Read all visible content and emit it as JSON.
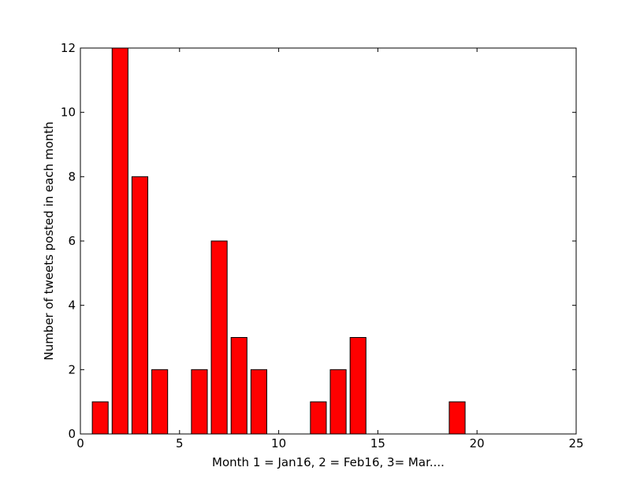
{
  "chart_data": {
    "type": "bar",
    "title": "",
    "xlabel": "Month 1 = Jan16, 2 = Feb16, 3= Mar....",
    "ylabel": "Number of tweets posted in each month",
    "xlim": [
      0,
      25
    ],
    "ylim": [
      0,
      12
    ],
    "xticks": [
      0,
      5,
      10,
      15,
      20,
      25
    ],
    "yticks": [
      0,
      2,
      4,
      6,
      8,
      10,
      12
    ],
    "grid": false,
    "legend": "none",
    "bar_width": 0.8,
    "bar_color": "#ff0000",
    "bar_edge_color": "#000000",
    "x": [
      1,
      2,
      3,
      4,
      5,
      6,
      7,
      8,
      9,
      10,
      11,
      12,
      13,
      14,
      15,
      16,
      17,
      18,
      19,
      20,
      21
    ],
    "values": [
      1,
      12,
      8,
      2,
      0,
      2,
      6,
      3,
      2,
      0,
      0,
      1,
      2,
      3,
      0,
      0,
      0,
      0,
      1,
      0,
      0
    ]
  }
}
